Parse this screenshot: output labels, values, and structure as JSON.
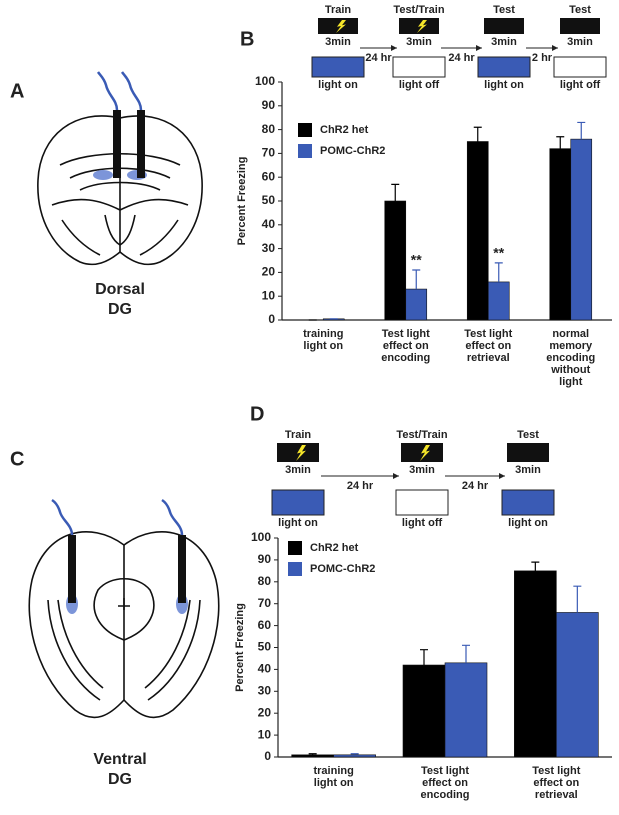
{
  "panel_labels": [
    "A",
    "B",
    "C",
    "D"
  ],
  "brains": [
    {
      "label": [
        "Dorsal",
        "DG"
      ]
    },
    {
      "label": [
        "Ventral",
        "DG"
      ]
    }
  ],
  "protocols": [
    {
      "steps": [
        {
          "title": "Train",
          "duration": "3min",
          "light": "light on",
          "lit": true,
          "shock": true
        },
        {
          "title": "Test/Train",
          "duration": "3min",
          "light": "light off",
          "lit": false,
          "shock": true
        },
        {
          "title": "Test",
          "duration": "3min",
          "light": "light on",
          "lit": true,
          "shock": false
        },
        {
          "title": "Test",
          "duration": "3min",
          "light": "light off",
          "lit": false,
          "shock": false
        }
      ],
      "intervals": [
        "24 hr",
        "24 hr",
        "2 hr"
      ]
    },
    {
      "steps": [
        {
          "title": "Train",
          "duration": "3min",
          "light": "light on",
          "lit": true,
          "shock": true
        },
        {
          "title": "Test/Train",
          "duration": "3min",
          "light": "light off",
          "lit": false,
          "shock": true
        },
        {
          "title": "Test",
          "duration": "3min",
          "light": "light on",
          "lit": true,
          "shock": false
        }
      ],
      "intervals": [
        "24 hr",
        "24 hr"
      ]
    }
  ],
  "chart_data": [
    {
      "type": "bar",
      "ylabel": "Percent Freezing",
      "categories": [
        [
          "training",
          "light on"
        ],
        [
          "Test light",
          "effect on",
          "encoding"
        ],
        [
          "Test light",
          "effect on",
          "retrieval"
        ],
        [
          "normal",
          "memory",
          "encoding",
          "without",
          "light"
        ]
      ],
      "series": [
        {
          "name": "ChR2 het",
          "color": "#000000",
          "values": [
            0,
            50,
            75,
            72
          ],
          "errors": [
            0,
            7,
            6,
            5
          ]
        },
        {
          "name": "POMC-ChR2",
          "color": "#3a5bb5",
          "values": [
            0.5,
            13,
            16,
            76
          ],
          "errors": [
            0,
            8,
            8,
            7
          ],
          "significance": [
            null,
            "**",
            "**",
            null
          ]
        }
      ],
      "ylim": [
        0,
        100
      ],
      "yticks": [
        0,
        10,
        20,
        30,
        40,
        50,
        60,
        70,
        80,
        90,
        100
      ]
    },
    {
      "type": "bar",
      "ylabel": "Percent Freezing",
      "categories": [
        [
          "training",
          "light on"
        ],
        [
          "Test light",
          "effect on",
          "encoding"
        ],
        [
          "Test light",
          "effect on",
          "retrieval"
        ]
      ],
      "series": [
        {
          "name": "ChR2 het",
          "color": "#000000",
          "values": [
            1,
            42,
            85
          ],
          "errors": [
            0.5,
            7,
            4
          ]
        },
        {
          "name": "POMC-ChR2",
          "color": "#3a5bb5",
          "values": [
            1,
            43,
            66
          ],
          "errors": [
            0.5,
            8,
            12
          ]
        }
      ],
      "ylim": [
        0,
        100
      ],
      "yticks": [
        0,
        10,
        20,
        30,
        40,
        50,
        60,
        70,
        80,
        90,
        100
      ]
    }
  ]
}
